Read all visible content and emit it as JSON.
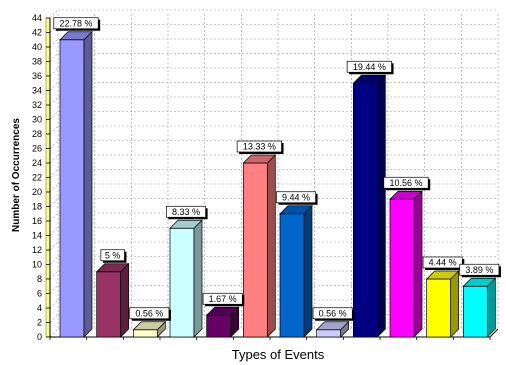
{
  "chart_data": {
    "type": "bar",
    "xlabel": "Types of Events",
    "ylabel": "Number of Occurrences",
    "ylim": [
      0,
      44
    ],
    "yticks": [
      0,
      2,
      4,
      6,
      8,
      10,
      12,
      14,
      16,
      18,
      20,
      22,
      24,
      26,
      28,
      30,
      32,
      34,
      36,
      38,
      40,
      42,
      44
    ],
    "grid": true,
    "values": [
      41,
      9,
      1,
      15,
      3,
      24,
      17,
      1,
      35,
      19,
      8,
      7
    ],
    "data_labels": [
      "22.78 %",
      "5 %",
      "0.56 %",
      "8.33 %",
      "1.67 %",
      "13.33 %",
      "9.44 %",
      "0.56 %",
      "19.44 %",
      "10.56 %",
      "4.44 %",
      "3.89 %"
    ],
    "colors": [
      "#9999ff",
      "#993366",
      "#ffffcc",
      "#ccffff",
      "#660066",
      "#ff8080",
      "#0066cc",
      "#ccccff",
      "#000080",
      "#ff00ff",
      "#ffff00",
      "#00ffff"
    ]
  }
}
